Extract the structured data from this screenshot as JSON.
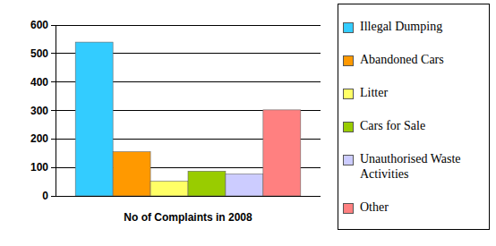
{
  "chart_data": {
    "type": "bar",
    "categories": [
      "No of Complaints in 2008"
    ],
    "series": [
      {
        "name": "Illegal Dumping",
        "color": "#33ccff",
        "values": [
          540
        ]
      },
      {
        "name": "Abandoned Cars",
        "color": "#ff9900",
        "values": [
          155
        ]
      },
      {
        "name": "Litter",
        "color": "#ffff66",
        "values": [
          52
        ]
      },
      {
        "name": "Cars for Sale",
        "color": "#99cc00",
        "values": [
          87
        ]
      },
      {
        "name": "Unauthorised Waste Activities",
        "color": "#ccccff",
        "values": [
          77
        ]
      },
      {
        "name": "Other",
        "color": "#ff8080",
        "values": [
          302
        ]
      }
    ],
    "ylim": [
      0,
      600
    ],
    "yticks": [
      0,
      100,
      200,
      300,
      400,
      500,
      600
    ],
    "grid": true,
    "legend": "right"
  }
}
